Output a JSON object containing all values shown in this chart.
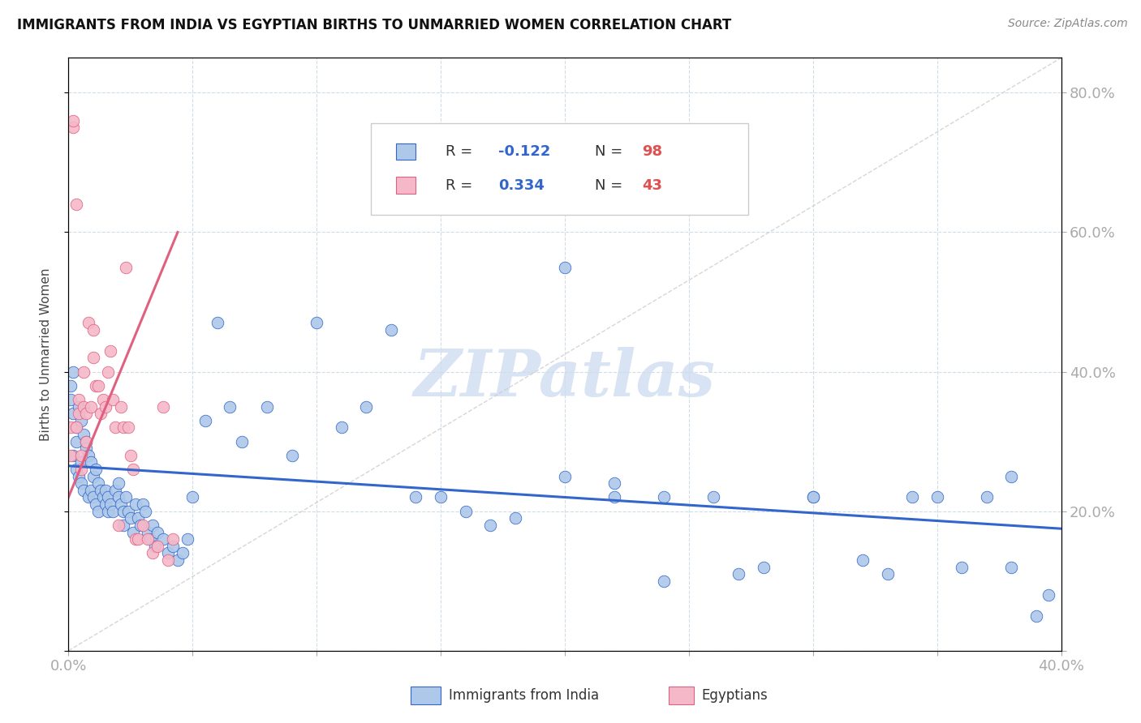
{
  "title": "IMMIGRANTS FROM INDIA VS EGYPTIAN BIRTHS TO UNMARRIED WOMEN CORRELATION CHART",
  "source": "Source: ZipAtlas.com",
  "ylabel": "Births to Unmarried Women",
  "xlim": [
    0.0,
    0.4
  ],
  "ylim": [
    0.0,
    0.85
  ],
  "legend_R_india": "-0.122",
  "legend_N_india": "98",
  "legend_R_egypt": "0.334",
  "legend_N_egypt": "43",
  "india_color": "#adc8e8",
  "egypt_color": "#f5b8c8",
  "india_line_color": "#3366cc",
  "egypt_line_color": "#e06080",
  "ref_line_color": "#cccccc",
  "watermark_color": "#c8d8ee",
  "india_trend_x0": 0.0,
  "india_trend_y0": 0.265,
  "india_trend_x1": 0.4,
  "india_trend_y1": 0.175,
  "egypt_trend_x0": 0.0,
  "egypt_trend_y0": 0.22,
  "egypt_trend_x1": 0.044,
  "egypt_trend_y1": 0.6,
  "india_points_x": [
    0.001,
    0.001,
    0.002,
    0.002,
    0.002,
    0.003,
    0.003,
    0.003,
    0.004,
    0.004,
    0.005,
    0.005,
    0.005,
    0.006,
    0.006,
    0.007,
    0.007,
    0.008,
    0.008,
    0.009,
    0.009,
    0.01,
    0.01,
    0.011,
    0.011,
    0.012,
    0.012,
    0.013,
    0.014,
    0.015,
    0.015,
    0.016,
    0.016,
    0.017,
    0.018,
    0.019,
    0.02,
    0.02,
    0.021,
    0.022,
    0.022,
    0.023,
    0.024,
    0.025,
    0.026,
    0.027,
    0.028,
    0.029,
    0.03,
    0.031,
    0.032,
    0.033,
    0.034,
    0.035,
    0.036,
    0.038,
    0.04,
    0.042,
    0.044,
    0.046,
    0.048,
    0.05,
    0.055,
    0.06,
    0.065,
    0.07,
    0.08,
    0.09,
    0.1,
    0.11,
    0.12,
    0.13,
    0.14,
    0.15,
    0.16,
    0.17,
    0.18,
    0.2,
    0.22,
    0.24,
    0.26,
    0.28,
    0.3,
    0.32,
    0.34,
    0.36,
    0.37,
    0.38,
    0.2,
    0.22,
    0.24,
    0.27,
    0.3,
    0.33,
    0.35,
    0.38,
    0.39,
    0.395
  ],
  "india_points_y": [
    0.38,
    0.36,
    0.4,
    0.34,
    0.28,
    0.32,
    0.3,
    0.26,
    0.35,
    0.25,
    0.33,
    0.27,
    0.24,
    0.31,
    0.23,
    0.3,
    0.29,
    0.28,
    0.22,
    0.27,
    0.23,
    0.25,
    0.22,
    0.26,
    0.21,
    0.24,
    0.2,
    0.23,
    0.22,
    0.21,
    0.23,
    0.2,
    0.22,
    0.21,
    0.2,
    0.23,
    0.22,
    0.24,
    0.21,
    0.2,
    0.18,
    0.22,
    0.2,
    0.19,
    0.17,
    0.21,
    0.19,
    0.18,
    0.21,
    0.2,
    0.17,
    0.16,
    0.18,
    0.15,
    0.17,
    0.16,
    0.14,
    0.15,
    0.13,
    0.14,
    0.16,
    0.22,
    0.33,
    0.47,
    0.35,
    0.3,
    0.35,
    0.28,
    0.47,
    0.32,
    0.35,
    0.46,
    0.22,
    0.22,
    0.2,
    0.18,
    0.19,
    0.55,
    0.22,
    0.22,
    0.22,
    0.12,
    0.22,
    0.13,
    0.22,
    0.12,
    0.22,
    0.12,
    0.25,
    0.24,
    0.1,
    0.11,
    0.22,
    0.11,
    0.22,
    0.25,
    0.05,
    0.08
  ],
  "egypt_points_x": [
    0.001,
    0.001,
    0.002,
    0.002,
    0.003,
    0.003,
    0.004,
    0.004,
    0.005,
    0.005,
    0.006,
    0.006,
    0.007,
    0.007,
    0.008,
    0.009,
    0.01,
    0.01,
    0.011,
    0.012,
    0.013,
    0.014,
    0.015,
    0.016,
    0.017,
    0.018,
    0.019,
    0.02,
    0.021,
    0.022,
    0.023,
    0.024,
    0.025,
    0.026,
    0.027,
    0.028,
    0.03,
    0.032,
    0.034,
    0.036,
    0.038,
    0.04,
    0.042
  ],
  "egypt_points_y": [
    0.28,
    0.32,
    0.75,
    0.76,
    0.64,
    0.32,
    0.34,
    0.36,
    0.28,
    0.26,
    0.4,
    0.35,
    0.34,
    0.3,
    0.47,
    0.35,
    0.46,
    0.42,
    0.38,
    0.38,
    0.34,
    0.36,
    0.35,
    0.4,
    0.43,
    0.36,
    0.32,
    0.18,
    0.35,
    0.32,
    0.55,
    0.32,
    0.28,
    0.26,
    0.16,
    0.16,
    0.18,
    0.16,
    0.14,
    0.15,
    0.35,
    0.13,
    0.16
  ]
}
